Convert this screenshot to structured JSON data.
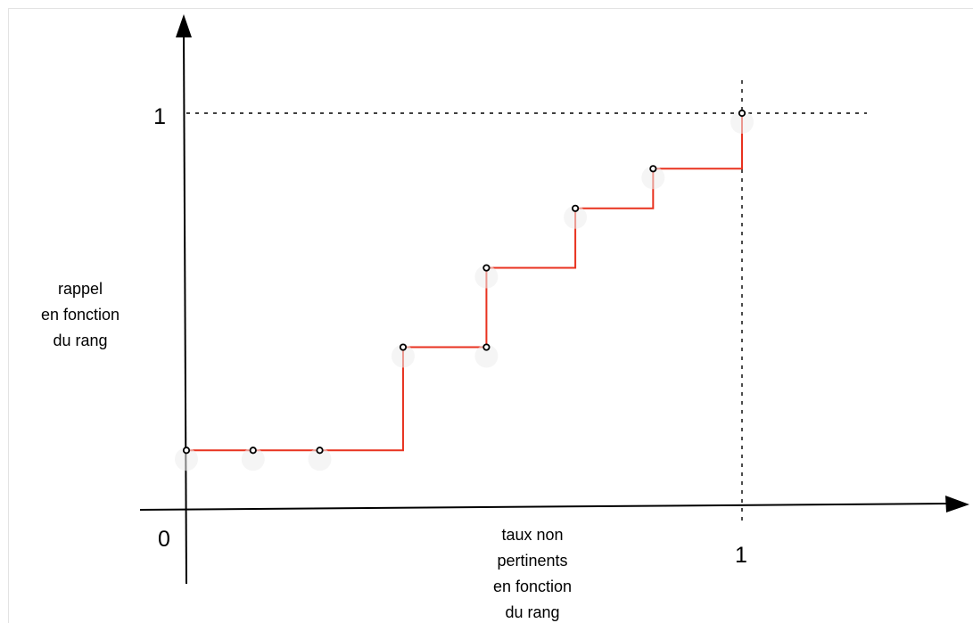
{
  "chart_data": {
    "type": "line",
    "step": "post",
    "series": [
      {
        "x": [
          0,
          0.12,
          0.24,
          0.39,
          0.54,
          0.54,
          0.7,
          0.84,
          1.0
        ],
        "y": [
          0.15,
          0.15,
          0.15,
          0.41,
          0.41,
          0.61,
          0.76,
          0.86,
          1.0
        ],
        "color": "#e8321f"
      }
    ],
    "x_axis": {
      "label": "taux non pertinents en fonction du rang",
      "label_lines": [
        "taux non",
        "pertinents",
        "en fonction",
        "du rang"
      ],
      "ticks": [
        "0",
        "1"
      ]
    },
    "y_axis": {
      "label": "rappel en fonction du rang",
      "label_lines": [
        "rappel",
        "en fonction",
        "du rang"
      ],
      "ticks": [
        "1"
      ]
    },
    "reference_lines": [
      {
        "axis": "y",
        "value": 1,
        "style": "dotted"
      },
      {
        "axis": "x",
        "value": 1,
        "style": "dotted"
      }
    ],
    "legend": false,
    "grid": false
  }
}
